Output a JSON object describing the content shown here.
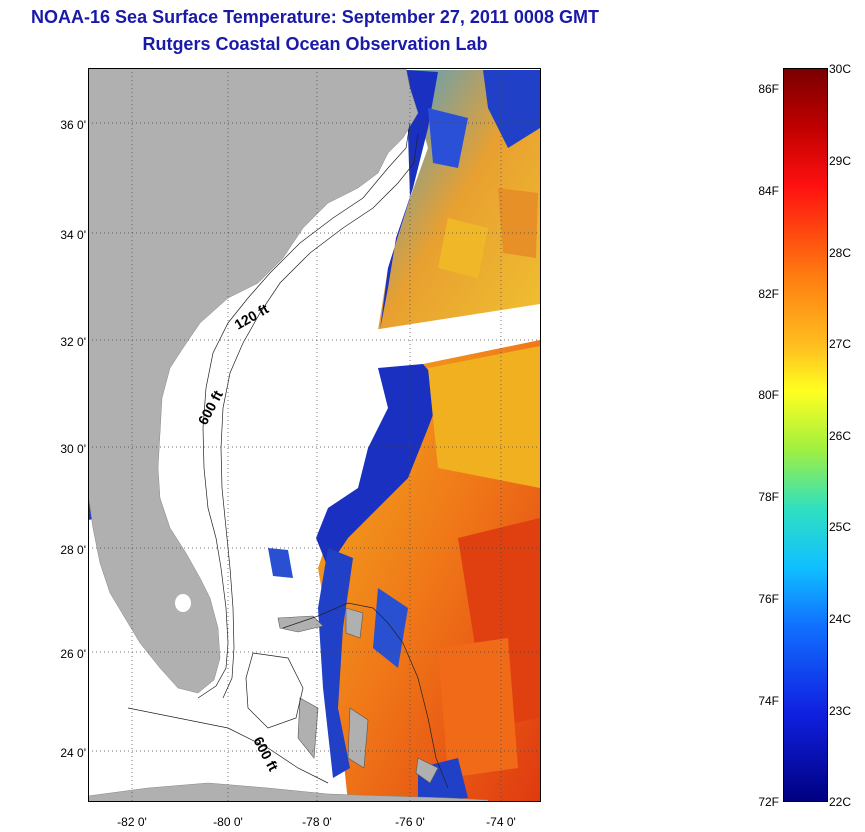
{
  "title": "NOAA-16 Sea Surface Temperature:  September 27, 2011 0008 GMT",
  "subtitle": "Rutgers Coastal Ocean Observation Lab",
  "map": {
    "lat_labels": [
      "36 0'",
      "34 0'",
      "32 0'",
      "30 0'",
      "28 0'",
      "26 0'",
      "24 0'"
    ],
    "lon_labels": [
      "-82 0'",
      "-80 0'",
      "-78 0'",
      "-76 0'",
      "-74 0'"
    ],
    "contour_labels": [
      "120 ft",
      "600 ft",
      "600 ft"
    ],
    "land_color": "#b0b0b0",
    "missing_color": "#ffffff"
  },
  "colorbar": {
    "fahrenheit_labels": [
      "86F",
      "84F",
      "82F",
      "80F",
      "78F",
      "76F",
      "74F",
      "72F"
    ],
    "celsius_labels": [
      "30C",
      "29C",
      "28C",
      "27C",
      "26C",
      "25C",
      "24C",
      "23C",
      "22C"
    ],
    "range_c": [
      22,
      30
    ],
    "range_f": [
      72,
      86
    ]
  }
}
